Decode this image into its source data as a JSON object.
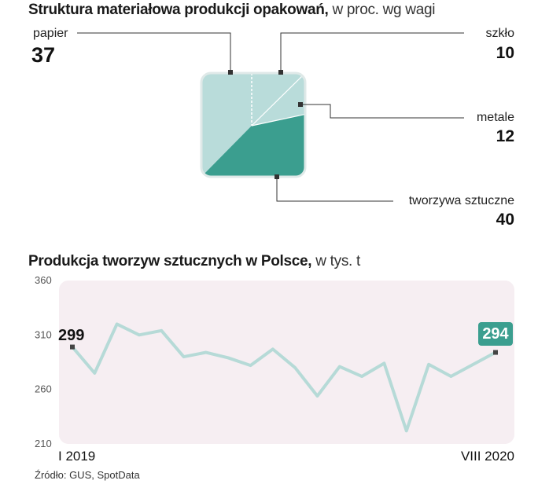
{
  "title1": {
    "bold": "Struktura materiałowa produkcji opakowań,",
    "rest": " w proc. wg wagi"
  },
  "title2": {
    "bold": "Produkcja tworzyw sztucznych w Polsce,",
    "rest": " w tys. t"
  },
  "source": "Źródło: GUS, SpotData",
  "colors": {
    "light": "#b9dcda",
    "dark": "#3b9e8f",
    "line": "#b6dad7",
    "plot_bg": "#f6eef2",
    "badge": "#3b9e8f"
  },
  "chart_data": [
    {
      "type": "pie",
      "slices": [
        {
          "name": "papier",
          "value": 37
        },
        {
          "name": "szkło",
          "value": 10
        },
        {
          "name": "metale",
          "value": 12
        },
        {
          "name": "tworzywa sztuczne",
          "value": 40
        }
      ]
    },
    {
      "type": "line",
      "x_first_label": "I 2019",
      "x_last_label": "VIII 2020",
      "ylim": [
        210,
        360
      ],
      "yticks": [
        "360",
        "310",
        "260",
        "210"
      ],
      "series": [
        {
          "values": [
            299,
            275,
            320,
            310,
            314,
            290,
            294,
            289,
            282,
            297,
            280,
            254,
            281,
            272,
            284,
            222,
            283,
            272,
            283,
            294
          ]
        }
      ],
      "start_label": "299",
      "end_label": "294"
    }
  ]
}
